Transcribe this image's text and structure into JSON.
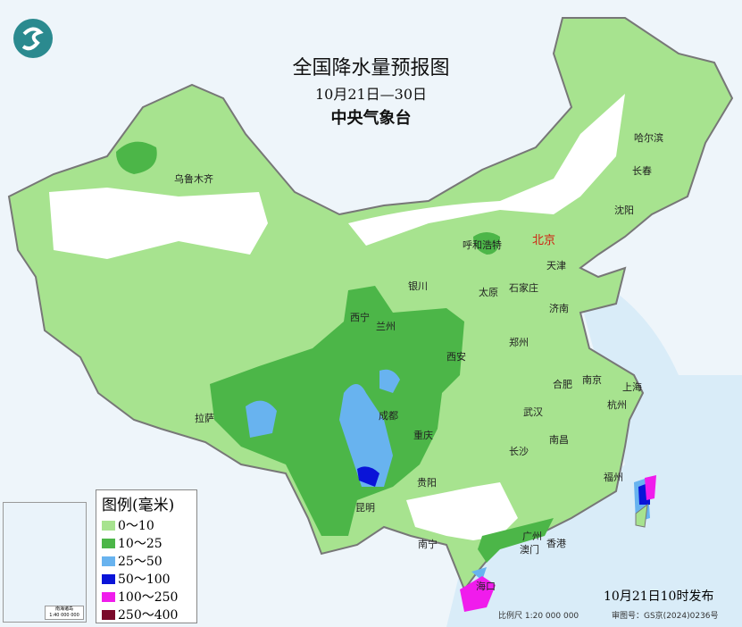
{
  "title": "全国降水量预报图",
  "period": "10月21日—30日",
  "agency": "中央气象台",
  "legend": {
    "title": "图例(毫米)",
    "items": [
      {
        "label": "0～10",
        "color": "#a7e38f"
      },
      {
        "label": "10～25",
        "color": "#4cb648"
      },
      {
        "label": "25～50",
        "color": "#68b3ef"
      },
      {
        "label": "50～100",
        "color": "#0a14d8"
      },
      {
        "label": "100～250",
        "color": "#f01cec"
      },
      {
        "label": "250～400",
        "color": "#7a0a2a"
      }
    ]
  },
  "inset": {
    "name": "南海诸岛",
    "scale": "1:40 000 000"
  },
  "footer": {
    "issued": "10月21日10时发布",
    "scale": "比例尺 1:20 000 000",
    "approval": "审图号：GS京(2024)0236号"
  },
  "cities": [
    "乌鲁木齐",
    "哈尔滨",
    "长春",
    "沈阳",
    "北京",
    "天津",
    "呼和浩特",
    "银川",
    "太原",
    "石家庄",
    "济南",
    "西宁",
    "兰州",
    "西安",
    "郑州",
    "合肥",
    "南京",
    "上海",
    "杭州",
    "武汉",
    "成都",
    "重庆",
    "长沙",
    "南昌",
    "拉萨",
    "贵阳",
    "福州",
    "昆明",
    "南宁",
    "广州",
    "澳门",
    "香港",
    "海口"
  ],
  "logo_icon": "cma-logo-icon"
}
